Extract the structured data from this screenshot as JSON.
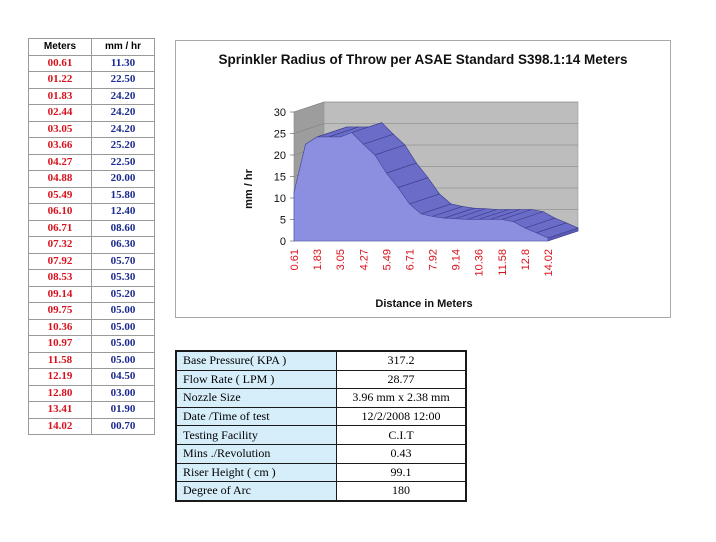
{
  "table": {
    "headers": [
      "Meters",
      "mm / hr"
    ],
    "rows": [
      [
        "00.61",
        "11.30"
      ],
      [
        "01.22",
        "22.50"
      ],
      [
        "01.83",
        "24.20"
      ],
      [
        "02.44",
        "24.20"
      ],
      [
        "03.05",
        "24.20"
      ],
      [
        "03.66",
        "25.20"
      ],
      [
        "04.27",
        "22.50"
      ],
      [
        "04.88",
        "20.00"
      ],
      [
        "05.49",
        "15.80"
      ],
      [
        "06.10",
        "12.40"
      ],
      [
        "06.71",
        "08.60"
      ],
      [
        "07.32",
        "06.30"
      ],
      [
        "07.92",
        "05.70"
      ],
      [
        "08.53",
        "05.30"
      ],
      [
        "09.14",
        "05.20"
      ],
      [
        "09.75",
        "05.00"
      ],
      [
        "10.36",
        "05.00"
      ],
      [
        "10.97",
        "05.00"
      ],
      [
        "11.58",
        "05.00"
      ],
      [
        "12.19",
        "04.50"
      ],
      [
        "12.80",
        "03.00"
      ],
      [
        "13.41",
        "01.90"
      ],
      [
        "14.02",
        "00.70"
      ]
    ]
  },
  "colors": {
    "meters_text": "#d8121d",
    "rate_text": "#1a2a8e",
    "area_fill": "#8c8ee0",
    "area_top": "#6a6cc8",
    "wall": "#bdbdbd",
    "info_label_bg": "#d6eefa"
  },
  "chart_data": {
    "type": "area",
    "title": "Sprinkler Radius of Throw per ASAE Standard S398.1:14 Meters",
    "xlabel": "Distance in Meters",
    "ylabel": "mm / hr",
    "x_tick_labels": [
      "0.61",
      "1.83",
      "3.05",
      "4.27",
      "5.49",
      "6.71",
      "7.92",
      "9.14",
      "10.36",
      "11.58",
      "12.8",
      "14.02"
    ],
    "y_tick_labels": [
      "0",
      "5",
      "10",
      "15",
      "20",
      "25",
      "30"
    ],
    "ylim": [
      0,
      30
    ],
    "x": [
      0.61,
      1.22,
      1.83,
      2.44,
      3.05,
      3.66,
      4.27,
      4.88,
      5.49,
      6.1,
      6.71,
      7.32,
      7.92,
      8.53,
      9.14,
      9.75,
      10.36,
      10.97,
      11.58,
      12.19,
      12.8,
      13.41,
      14.02
    ],
    "values": [
      11.3,
      22.5,
      24.2,
      24.2,
      24.2,
      25.2,
      22.5,
      20.0,
      15.8,
      12.4,
      8.6,
      6.3,
      5.7,
      5.3,
      5.2,
      5.0,
      5.0,
      5.0,
      5.0,
      4.5,
      3.0,
      1.9,
      0.7
    ],
    "style": "3d",
    "grid": true,
    "legend": "none"
  },
  "info": {
    "rows": [
      {
        "label": "Base Pressure( KPA  )",
        "value": "317.2"
      },
      {
        "label": "Flow Rate ( LPM )",
        "value": "28.77"
      },
      {
        "label": "Nozzle Size",
        "value": "3.96 mm x 2.38 mm"
      },
      {
        "label": "Date /Time of test",
        "value": "12/2/2008 12:00"
      },
      {
        "label": "Testing Facility",
        "value": "C.I.T"
      },
      {
        "label": "Mins ./Revolution",
        "value": "0.43"
      },
      {
        "label": "Riser Height ( cm )",
        "value": "99.1"
      },
      {
        "label": "Degree of Arc",
        "value": "180"
      }
    ]
  }
}
